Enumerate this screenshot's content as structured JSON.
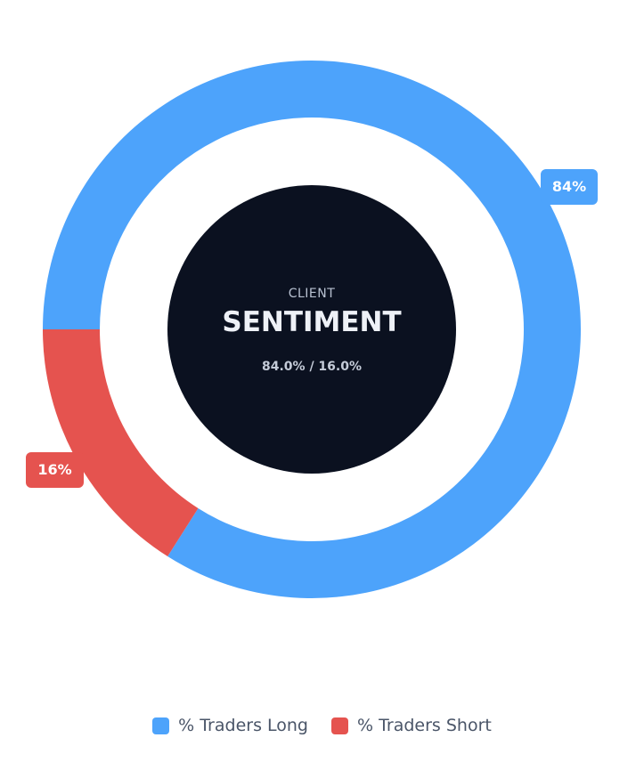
{
  "center": {
    "kicker": "CLIENT",
    "title": "SENTIMENT",
    "subtitle": "84.0% / 16.0%"
  },
  "colors": {
    "long": "#4da3fb",
    "short": "#e5534f",
    "center": "#0b1120"
  },
  "chart_data": {
    "type": "pie",
    "variant": "donut",
    "categories": [
      "% Traders Long",
      "% Traders Short"
    ],
    "values": [
      84,
      16
    ],
    "data_labels": [
      "84%",
      "16%"
    ],
    "legend_position": "bottom",
    "start_angle": "9 o'clock, clockwise"
  }
}
